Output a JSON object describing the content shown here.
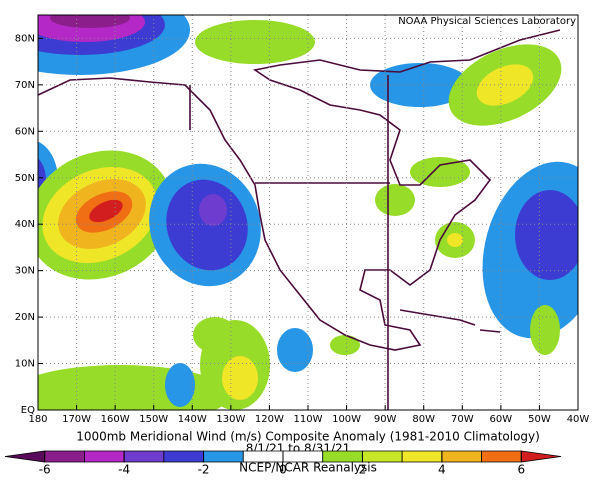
{
  "map": {
    "credit": "NOAA Physical Sciences Laboratory",
    "lat_labels": [
      "EQ",
      "10N",
      "20N",
      "30N",
      "40N",
      "50N",
      "60N",
      "70N",
      "80N"
    ],
    "lon_labels": [
      "180",
      "170W",
      "160W",
      "150W",
      "140W",
      "130W",
      "120W",
      "110W",
      "100W",
      "90W",
      "80W",
      "70W",
      "60W",
      "50W",
      "40W"
    ],
    "title": "1000mb Meridional Wind (m/s) Composite Anomaly (1981-2010 Climatology)",
    "period": "8/1/21 to 8/31/21",
    "source": "NCEP/NCAR Reanalysis",
    "colorbar": {
      "lim": [
        -7,
        7
      ],
      "ticks": [
        -6,
        -4,
        -2,
        0,
        2,
        4,
        6
      ],
      "colors": [
        "#5a0a5a",
        "#8c1e8c",
        "#b428c8",
        "#6e3ccf",
        "#3c3cd2",
        "#2896e6",
        "#ffffff",
        "#ffffff",
        "#96dc28",
        "#c8e628",
        "#f0e628",
        "#f0b41e",
        "#f06e14",
        "#d21e1e"
      ]
    }
  }
}
